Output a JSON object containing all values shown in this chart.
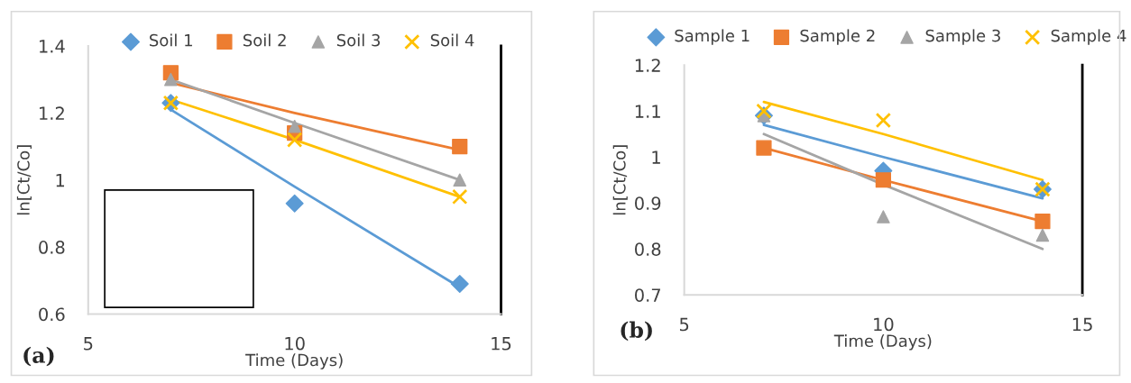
{
  "chart_data": [
    {
      "type": "scatter",
      "xlabel": "Time (Days)",
      "ylabel": "ln[Ct/Co]",
      "annotations": [
        "(a)"
      ],
      "xlim": [
        5,
        15
      ],
      "xticks": [
        5,
        10,
        15
      ],
      "ylim": [
        0.6,
        1.4
      ],
      "yticks": [
        0.6,
        0.8,
        1,
        1.2,
        1.4
      ],
      "legend": "top",
      "grid": false,
      "x": [
        7,
        10,
        14
      ],
      "series": [
        {
          "name": "Soil 1",
          "color": "#5b9bd5",
          "marker": "diamond",
          "values": [
            1.23,
            0.93,
            0.69
          ]
        },
        {
          "name": "Soil 2",
          "color": "#ed7d31",
          "marker": "square",
          "values": [
            1.32,
            1.14,
            1.1
          ]
        },
        {
          "name": "Soil 3",
          "color": "#a5a5a5",
          "marker": "triangle",
          "values": [
            1.3,
            1.16,
            1.0
          ]
        },
        {
          "name": "Soil 4",
          "color": "#ffc000",
          "marker": "cross",
          "values": [
            1.23,
            1.12,
            0.95
          ]
        },
        {
          "type": "line",
          "color": "#5b9bd5",
          "marker": "none",
          "values": [
            1.21,
            0.98,
            0.68
          ]
        },
        {
          "type": "line",
          "color": "#ed7d31",
          "marker": "none",
          "values": [
            1.29,
            1.2,
            1.09
          ]
        },
        {
          "type": "line",
          "color": "#a5a5a5",
          "marker": "none",
          "values": [
            1.3,
            1.17,
            1.0
          ]
        },
        {
          "type": "line",
          "color": "#ffc000",
          "marker": "none",
          "values": [
            1.24,
            1.12,
            0.95
          ]
        }
      ]
    },
    {
      "type": "scatter",
      "xlabel": "Time (Days)",
      "ylabel": "ln[Ct/Co]",
      "annotations": [
        "(b)"
      ],
      "xlim": [
        5,
        15
      ],
      "xticks": [
        5,
        10,
        15
      ],
      "ylim": [
        0.7,
        1.2
      ],
      "yticks": [
        0.7,
        0.8,
        0.9,
        1,
        1.1,
        1.2
      ],
      "legend": "top",
      "grid": false,
      "x": [
        7,
        10,
        14
      ],
      "series": [
        {
          "name": "Sample 1",
          "color": "#5b9bd5",
          "marker": "diamond",
          "values": [
            1.09,
            0.97,
            0.93
          ]
        },
        {
          "name": "Sample 2",
          "color": "#ed7d31",
          "marker": "square",
          "values": [
            1.02,
            0.95,
            0.86
          ]
        },
        {
          "name": "Sample 3",
          "color": "#a5a5a5",
          "marker": "triangle",
          "values": [
            1.09,
            0.87,
            0.83
          ]
        },
        {
          "name": "Sample 4",
          "color": "#ffc000",
          "marker": "cross",
          "values": [
            1.1,
            1.08,
            0.93
          ]
        },
        {
          "type": "line",
          "color": "#5b9bd5",
          "marker": "none",
          "values": [
            1.07,
            1.0,
            0.91
          ]
        },
        {
          "type": "line",
          "color": "#ed7d31",
          "marker": "none",
          "values": [
            1.02,
            0.95,
            0.86
          ]
        },
        {
          "type": "line",
          "color": "#a5a5a5",
          "marker": "none",
          "values": [
            1.05,
            0.94,
            0.8
          ]
        },
        {
          "type": "line",
          "color": "#ffc000",
          "marker": "none",
          "values": [
            1.12,
            1.05,
            0.95
          ]
        }
      ]
    }
  ]
}
